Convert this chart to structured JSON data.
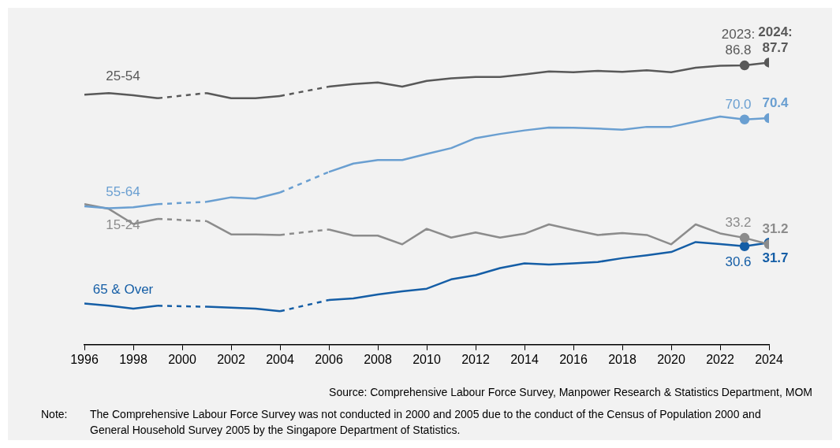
{
  "chart_data": {
    "type": "line",
    "x": [
      1996,
      1997,
      1998,
      1999,
      2000,
      2001,
      2002,
      2003,
      2004,
      2005,
      2006,
      2007,
      2008,
      2009,
      2010,
      2011,
      2012,
      2013,
      2014,
      2015,
      2016,
      2017,
      2018,
      2019,
      2020,
      2021,
      2022,
      2023,
      2024
    ],
    "series": [
      {
        "name": "25-54",
        "color": "#595959",
        "values": [
          77.7,
          78.2,
          77.5,
          76.6,
          null,
          78.2,
          76.6,
          76.6,
          77.3,
          null,
          80.2,
          81.0,
          81.5,
          80.2,
          82.0,
          82.8,
          83.2,
          83.2,
          84.0,
          84.9,
          84.7,
          85.1,
          84.8,
          85.3,
          84.7,
          86.1,
          86.7,
          86.8,
          87.7
        ],
        "value_labels": [
          null,
          null,
          null,
          null,
          null,
          null,
          null,
          null,
          null,
          null,
          null,
          null,
          null,
          null,
          null,
          null,
          null,
          null,
          null,
          null,
          null,
          null,
          null,
          null,
          null,
          null,
          null,
          "2023:\n86.8",
          "2024:\n87.7"
        ]
      },
      {
        "name": "55-64",
        "color": "#6a9fd1",
        "values": [
          43.0,
          42.4,
          42.7,
          43.7,
          null,
          44.4,
          45.8,
          45.4,
          47.3,
          null,
          53.7,
          56.3,
          57.4,
          57.4,
          59.3,
          61.1,
          64.2,
          65.5,
          66.6,
          67.5,
          67.4,
          67.2,
          66.8,
          67.7,
          67.7,
          69.3,
          70.9,
          70.0,
          70.4
        ],
        "value_labels": [
          null,
          null,
          null,
          null,
          null,
          null,
          null,
          null,
          null,
          null,
          null,
          null,
          null,
          null,
          null,
          null,
          null,
          null,
          null,
          null,
          null,
          null,
          null,
          null,
          null,
          null,
          null,
          "70.0",
          "70.4"
        ]
      },
      {
        "name": "15-24",
        "color": "#8c8c8c",
        "values": [
          43.7,
          42.2,
          37.5,
          39.1,
          null,
          38.4,
          34.3,
          34.3,
          34.1,
          null,
          35.8,
          33.9,
          33.9,
          31.2,
          36.0,
          33.3,
          34.9,
          33.3,
          34.5,
          37.4,
          35.7,
          34.1,
          34.7,
          34.1,
          31.2,
          37.4,
          34.6,
          33.2,
          31.2
        ],
        "value_labels": [
          null,
          null,
          null,
          null,
          null,
          null,
          null,
          null,
          null,
          null,
          null,
          null,
          null,
          null,
          null,
          null,
          null,
          null,
          null,
          null,
          null,
          null,
          null,
          null,
          null,
          null,
          null,
          "33.2",
          "31.2"
        ]
      },
      {
        "name": "65 & Over",
        "color": "#155ea6",
        "values": [
          12.8,
          12.1,
          11.2,
          12.1,
          null,
          11.8,
          11.5,
          11.2,
          10.4,
          null,
          13.9,
          14.4,
          15.6,
          16.6,
          17.4,
          20.3,
          21.6,
          23.8,
          25.3,
          24.9,
          25.3,
          25.7,
          26.9,
          27.8,
          28.8,
          31.9,
          31.3,
          30.6,
          31.7
        ],
        "value_labels": [
          null,
          null,
          null,
          null,
          null,
          null,
          null,
          null,
          null,
          null,
          null,
          null,
          null,
          null,
          null,
          null,
          null,
          null,
          null,
          null,
          null,
          null,
          null,
          null,
          null,
          null,
          null,
          "30.6",
          "31.7"
        ]
      }
    ],
    "xlim": [
      1996,
      2024
    ],
    "xticks": [
      1996,
      1998,
      2000,
      2002,
      2004,
      2006,
      2008,
      2010,
      2012,
      2014,
      2016,
      2018,
      2020,
      2022,
      2024
    ],
    "tick_labels": "x",
    "grid": false,
    "legend": false,
    "line_style": "solid",
    "annotations": [
      "Source: Comprehensive Labour Force Survey, Manpower Research & Statistics Department, MOM",
      "Note: The Comprehensive Labour Force Survey was not conducted in 2000 and 2005 due to the conduct of the Census of Population 2000 and General Household Survey 2005 by the Singapore Department of Statistics."
    ]
  }
}
